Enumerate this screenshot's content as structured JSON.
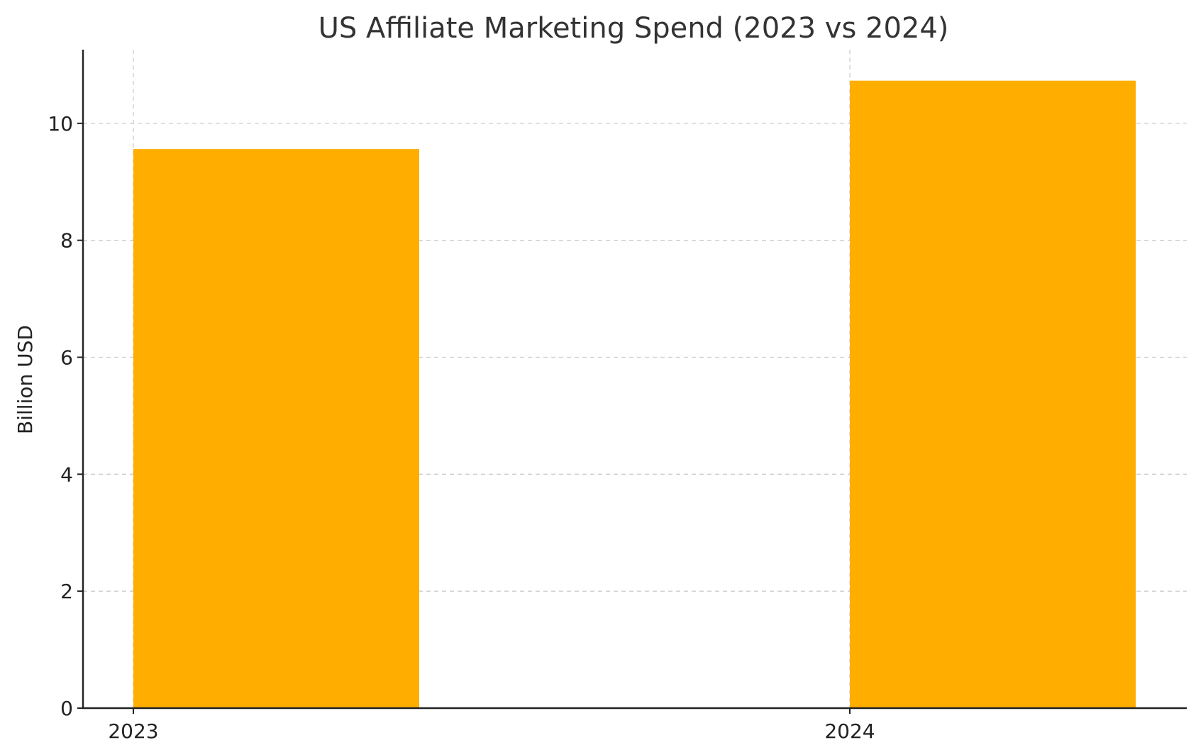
{
  "chart_data": {
    "type": "bar",
    "title": "US Affiliate Marketing Spend (2023 vs 2024)",
    "xlabel": "",
    "ylabel": "Billion USD",
    "categories": [
      "2023",
      "2024"
    ],
    "values": [
      9.56,
      10.73
    ],
    "ylim": [
      0,
      11.26
    ],
    "yticks": [
      0,
      2,
      4,
      6,
      8,
      10
    ],
    "grid": true,
    "bar_color": "#FFAE00",
    "legend": "none"
  }
}
